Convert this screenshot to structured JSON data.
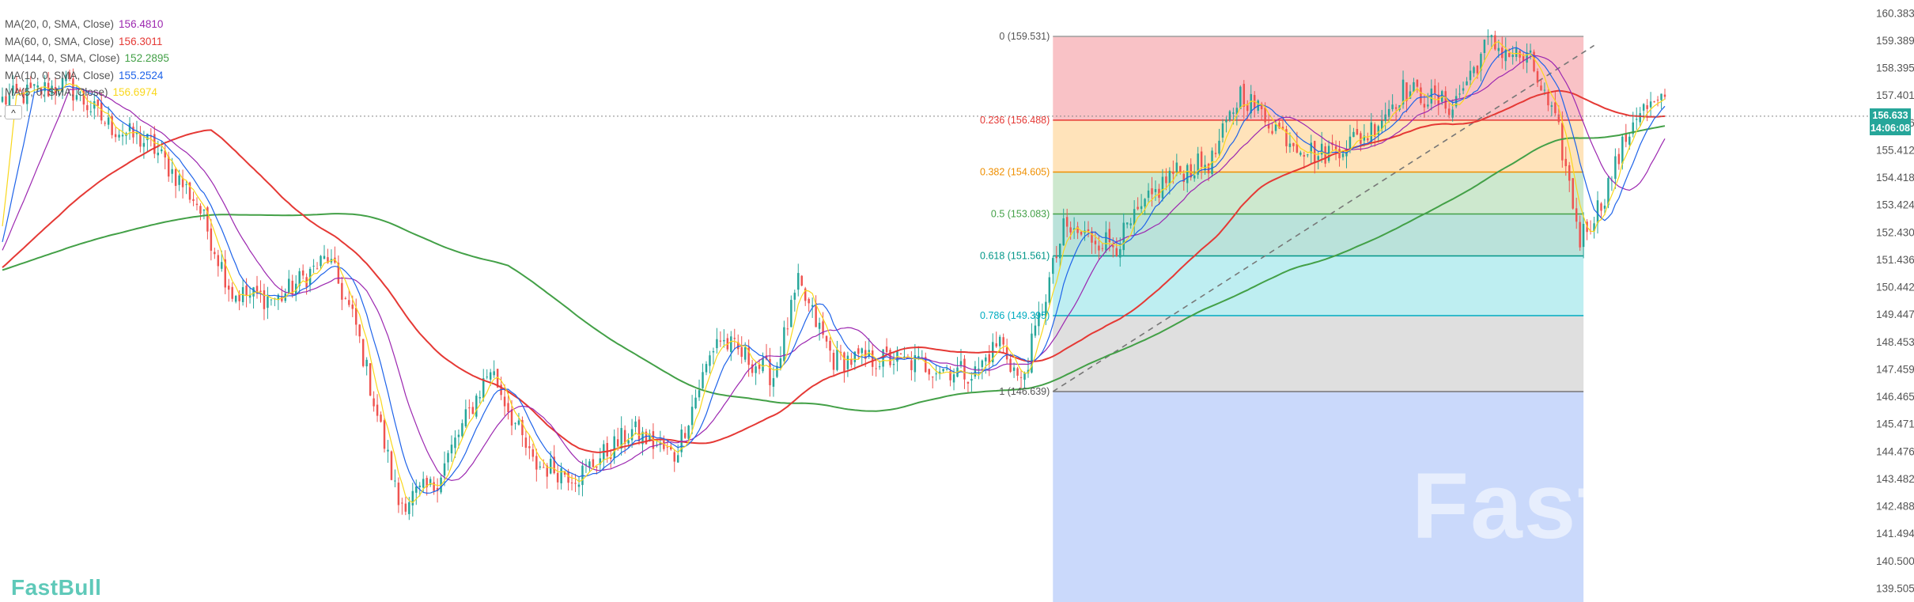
{
  "brand": {
    "name": "FastBull",
    "watermark": "FastBull"
  },
  "legend": [
    {
      "label": "MA(20, 0, SMA, Close)",
      "value": "156.4810",
      "color": "#9c27b0"
    },
    {
      "label": "MA(60, 0, SMA, Close)",
      "value": "156.3011",
      "color": "#e53935"
    },
    {
      "label": "MA(144, 0, SMA, Close)",
      "value": "152.2895",
      "color": "#43a047"
    },
    {
      "label": "MA(10, 0, SMA, Close)",
      "value": "155.2524",
      "color": "#1e63e9"
    },
    {
      "label": "MA(5, 0, SMA, Close)",
      "value": "156.6974",
      "color": "#f9d71c"
    }
  ],
  "collapse_glyph": "^",
  "current_price": {
    "value": "156.633",
    "time": "14:06:08",
    "color": "#26a69a"
  },
  "chart_data": {
    "type": "candlestick",
    "title": "",
    "y_range": [
      139.0,
      160.85
    ],
    "y_ticks": [
      "160.383",
      "159.389",
      "158.395",
      "157.401",
      "156.406",
      "155.412",
      "154.418",
      "153.424",
      "152.430",
      "151.436",
      "150.442",
      "149.447",
      "148.453",
      "147.459",
      "146.465",
      "145.471",
      "144.476",
      "143.482",
      "142.488",
      "141.494",
      "140.500",
      "139.505"
    ],
    "up_color": "#26a69a",
    "down_color": "#ef5350",
    "candles_summary": {
      "start_price": 157.2,
      "waypoints": [
        [
          0,
          157.2
        ],
        [
          18,
          157.8
        ],
        [
          30,
          156.3
        ],
        [
          42,
          155.6
        ],
        [
          55,
          153.5
        ],
        [
          65,
          150.2
        ],
        [
          78,
          150.0
        ],
        [
          92,
          151.5
        ],
        [
          100,
          149.0
        ],
        [
          112,
          142.6
        ],
        [
          122,
          143.2
        ],
        [
          138,
          147.5
        ],
        [
          150,
          144.0
        ],
        [
          163,
          143.6
        ],
        [
          178,
          145.2
        ],
        [
          190,
          144.3
        ],
        [
          202,
          148.6
        ],
        [
          218,
          147.2
        ],
        [
          225,
          150.5
        ],
        [
          235,
          147.8
        ],
        [
          252,
          147.8
        ],
        [
          265,
          147.5
        ],
        [
          275,
          147.3
        ],
        [
          282,
          148.5
        ],
        [
          288,
          146.9
        ],
        [
          300,
          152.5
        ],
        [
          315,
          152.0
        ],
        [
          330,
          154.5
        ],
        [
          342,
          155.0
        ],
        [
          350,
          157.5
        ],
        [
          362,
          156.0
        ],
        [
          372,
          155.2
        ],
        [
          386,
          156.0
        ],
        [
          396,
          157.6
        ],
        [
          410,
          157.0
        ],
        [
          420,
          159.3
        ],
        [
          432,
          158.6
        ],
        [
          440,
          156.0
        ],
        [
          446,
          152.2
        ],
        [
          452,
          153.5
        ],
        [
          462,
          156.8
        ],
        [
          470,
          157.1
        ]
      ],
      "count": 471
    },
    "fibonacci": {
      "high": 159.531,
      "low": 146.639,
      "levels": [
        {
          "ratio": "0",
          "price": 159.531,
          "label": "0 (159.531)",
          "line": "#9e9e9e",
          "fill": "#f8bbc0",
          "text": "#555555"
        },
        {
          "ratio": "0.236",
          "price": 156.488,
          "label": "0.236 (156.488)",
          "line": "#e53935",
          "fill": "#ffe0b2",
          "text": "#e53935"
        },
        {
          "ratio": "0.382",
          "price": 154.605,
          "label": "0.382 (154.605)",
          "line": "#ef8f00",
          "fill": "#c8e6c9",
          "text": "#ef8f00"
        },
        {
          "ratio": "0.5",
          "price": 153.083,
          "label": "0.5 (153.083)",
          "line": "#43a047",
          "fill": "#b3dfd6",
          "text": "#43a047"
        },
        {
          "ratio": "0.618",
          "price": 151.561,
          "label": "0.618 (151.561)",
          "line": "#009688",
          "fill": "#b7ecef",
          "text": "#009688"
        },
        {
          "ratio": "0.786",
          "price": 149.395,
          "label": "0.786 (149.395)",
          "line": "#00acc1",
          "fill": "#dcdcdc",
          "text": "#00acc1"
        },
        {
          "ratio": "1",
          "price": 146.639,
          "label": "1 (146.639)",
          "line": "#777777",
          "fill": "#c4d5fb",
          "text": "#555555"
        }
      ],
      "start_index": 297,
      "end_index": 447,
      "trend_line": {
        "from": [
          297,
          146.639
        ],
        "to": [
          450,
          159.2
        ]
      }
    },
    "moving_averages": [
      {
        "name": "MA(144, 0, SMA, Close)",
        "color": "#43a047"
      },
      {
        "name": "MA(60, 0, SMA, Close)",
        "color": "#e53935"
      },
      {
        "name": "MA(20, 0, SMA, Close)",
        "color": "#9c27b0"
      },
      {
        "name": "MA(10, 0, SMA, Close)",
        "color": "#1e63e9"
      },
      {
        "name": "MA(5, 0, SMA, Close)",
        "color": "#f9d71c"
      }
    ]
  }
}
